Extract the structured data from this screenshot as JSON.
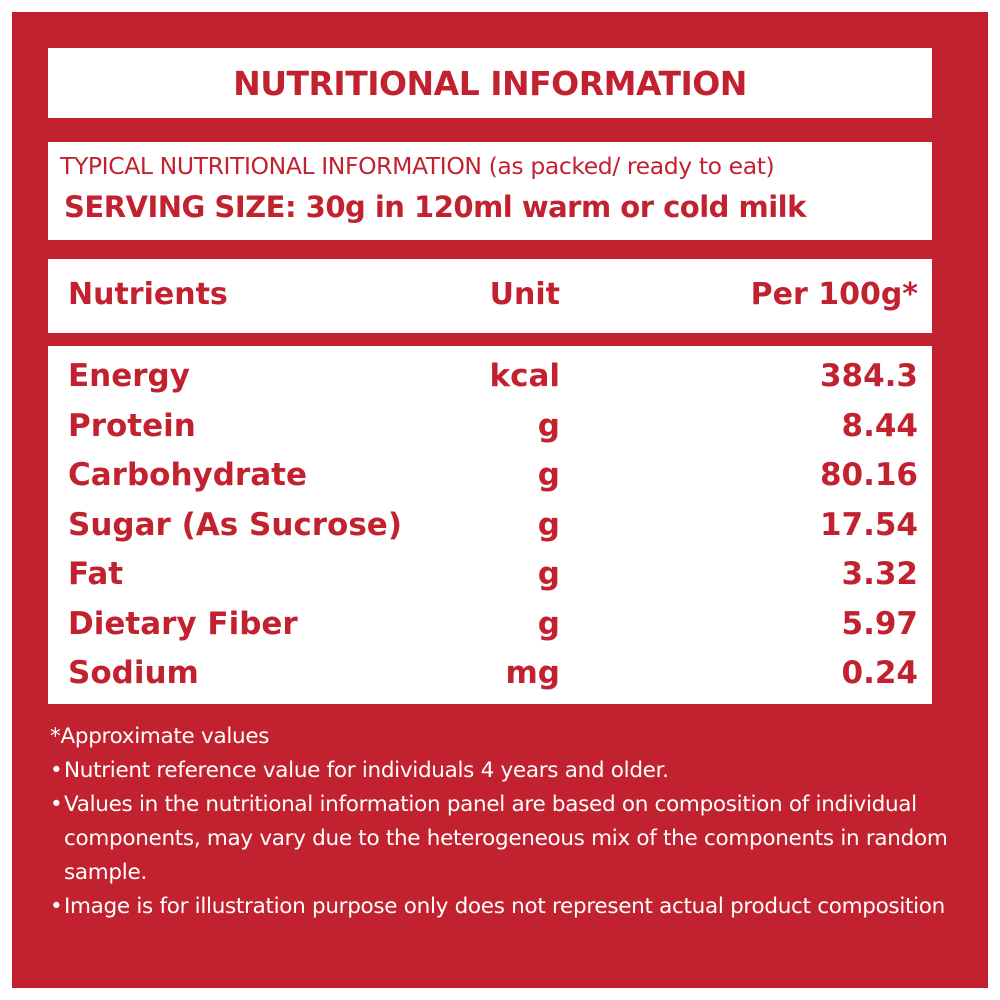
{
  "title": "NUTRITIONAL INFORMATION",
  "typical": "TYPICAL NUTRITIONAL INFORMATION (as packed/ ready to eat)",
  "serving": "SERVING SIZE: 30g in 120ml warm or cold milk",
  "table": {
    "headers": {
      "nutrient": "Nutrients",
      "unit": "Unit",
      "value": "Per 100g*"
    },
    "rows": [
      {
        "nutrient": "Energy",
        "unit": "kcal",
        "value": "384.3"
      },
      {
        "nutrient": "Protein",
        "unit": "g",
        "value": "8.44"
      },
      {
        "nutrient": "Carbohydrate",
        "unit": "g",
        "value": "80.16"
      },
      {
        "nutrient": "Sugar (As Sucrose)",
        "unit": "g",
        "value": "17.54"
      },
      {
        "nutrient": "Fat",
        "unit": "g",
        "value": "3.32"
      },
      {
        "nutrient": "Dietary Fiber",
        "unit": "g",
        "value": "5.97"
      },
      {
        "nutrient": "Sodium",
        "unit": "mg",
        "value": "0.24"
      }
    ]
  },
  "notes": {
    "approx": "*Approximate values",
    "bullet_symbol": "•",
    "items": [
      "Nutrient reference value for individuals 4 years and older.",
      "Values in the nutritional information panel are based on composition of individual components, may vary due to the heterogeneous mix of the components in random sample.",
      "Image is for illustration purpose only does not represent actual product composition"
    ]
  },
  "colors": {
    "brand_red": "#c2222f",
    "background": "#ffffff"
  }
}
